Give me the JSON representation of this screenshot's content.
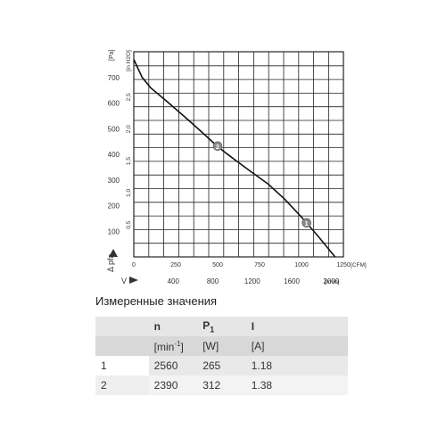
{
  "chart_data": {
    "type": "line",
    "title": "",
    "y_axis_left": {
      "label": "Δ pfa",
      "unit": "[Pa]",
      "ticks": [
        100,
        200,
        300,
        400,
        500,
        600,
        700
      ],
      "range": [
        0,
        800
      ]
    },
    "y_axis_secondary": {
      "unit": "[in H2O]",
      "ticks": [
        "0,5",
        "1,0",
        "1,5",
        "2,0",
        "2,5"
      ],
      "tick_values": [
        0.5,
        1.0,
        1.5,
        2.0,
        2.5
      ]
    },
    "x_axis_cfm": {
      "unit": "[CFM]",
      "ticks": [
        0,
        250,
        500,
        750,
        1000,
        1250
      ],
      "range": [
        0,
        1250
      ]
    },
    "x_axis_m3h": {
      "label": "V",
      "unit": "[m³/h]",
      "ticks": [
        400,
        800,
        1200,
        1600,
        2000
      ]
    },
    "grid": true,
    "series": [
      {
        "points_cfm_pa": [
          [
            0,
            770
          ],
          [
            50,
            700
          ],
          [
            100,
            660
          ],
          [
            200,
            605
          ],
          [
            300,
            548
          ],
          [
            400,
            490
          ],
          [
            500,
            430
          ],
          [
            600,
            380
          ],
          [
            700,
            332
          ],
          [
            800,
            285
          ],
          [
            900,
            225
          ],
          [
            1000,
            155
          ],
          [
            1100,
            80
          ],
          [
            1200,
            0
          ]
        ]
      }
    ],
    "markers": [
      {
        "label": "1",
        "cfm": 1030,
        "pa": 133
      },
      {
        "label": "2",
        "cfm": 500,
        "pa": 432
      }
    ]
  },
  "table": {
    "title": "Измеренные значения",
    "header": {
      "c0": "",
      "c1": "n",
      "c2_main": "P",
      "c2_sub": "1",
      "c3": "I"
    },
    "units": {
      "c0": "",
      "c1_main": "[min",
      "c1_sup": "-1",
      "c1_end": "]",
      "c2": "[W]",
      "c3": "[A]"
    },
    "rows": [
      {
        "id": "1",
        "n": "2560",
        "p1": "265",
        "i": "1.18"
      },
      {
        "id": "2",
        "n": "2390",
        "p1": "312",
        "i": "1.38"
      }
    ]
  }
}
